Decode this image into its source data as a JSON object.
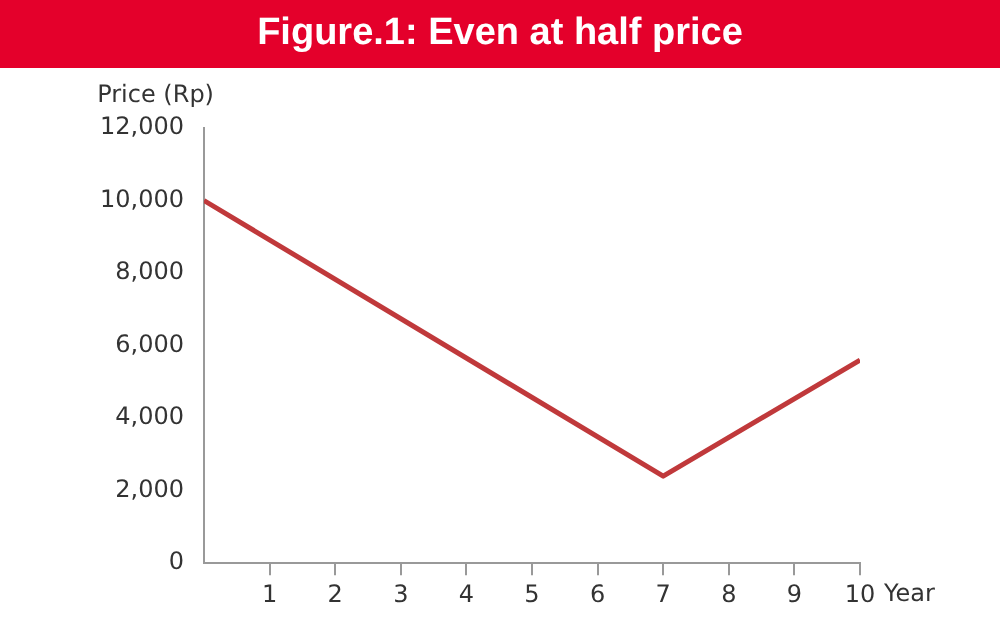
{
  "chart_data": {
    "type": "line",
    "title": "Figure.1: Even at half price",
    "xlabel": "Year",
    "ylabel": "Price (Rp)",
    "x": [
      0,
      7,
      10
    ],
    "series": [
      {
        "color": "#c0393b",
        "values": [
          10000,
          2400,
          5600
        ]
      }
    ],
    "xlim": [
      0,
      10
    ],
    "xticks": [
      1,
      2,
      3,
      4,
      5,
      6,
      7,
      8,
      9,
      10
    ],
    "ylim": [
      0,
      12000
    ],
    "yticks": [
      {
        "value": 0,
        "label": "0"
      },
      {
        "value": 2000,
        "label": "2,000"
      },
      {
        "value": 4000,
        "label": "4,000"
      },
      {
        "value": 6000,
        "label": "6,000"
      },
      {
        "value": 8000,
        "label": "8,000"
      },
      {
        "value": 10000,
        "label": "10,000"
      },
      {
        "value": 12000,
        "label": "12,000"
      }
    ],
    "grid": false,
    "legend": false,
    "marker": "none",
    "line_style": "solid"
  }
}
